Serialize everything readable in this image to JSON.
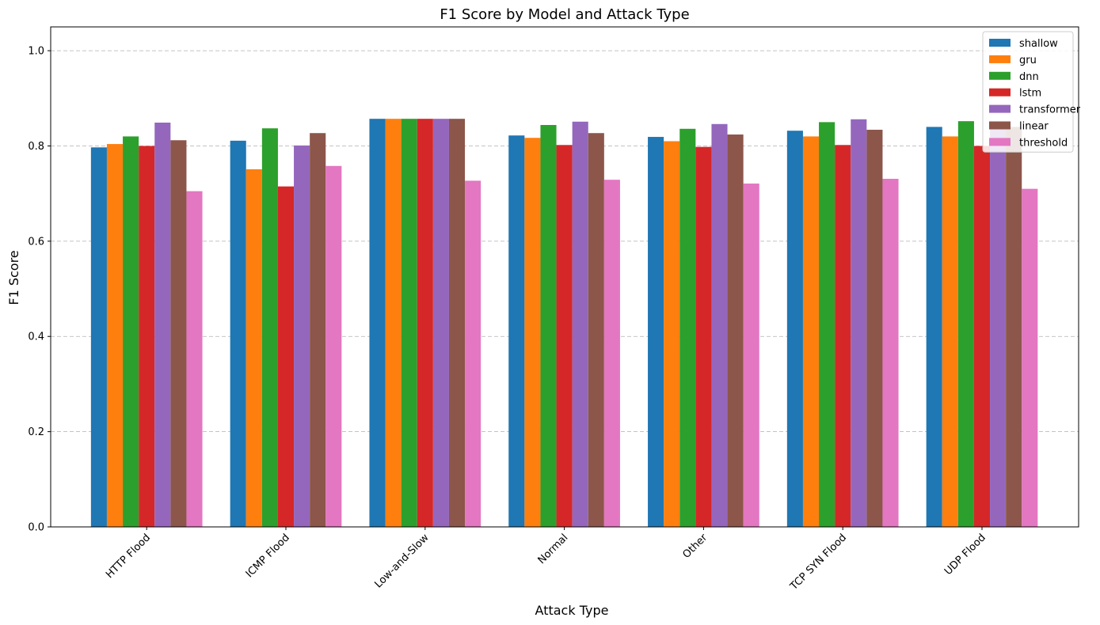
{
  "chart_data": {
    "type": "bar",
    "title": "F1 Score by Model and Attack Type",
    "xlabel": "Attack Type",
    "ylabel": "F1 Score",
    "ylim": [
      0,
      1.05
    ],
    "yticks": [
      "0.0",
      "0.2",
      "0.4",
      "0.6",
      "0.8",
      "1.0"
    ],
    "grid": "y-dashed",
    "legend_position": "top-right",
    "categories": [
      "HTTP Flood",
      "ICMP Flood",
      "Low-and-Slow",
      "Normal",
      "Other",
      "TCP SYN Flood",
      "UDP Flood"
    ],
    "series": [
      {
        "name": "shallow",
        "color": "#1f77b4",
        "values": [
          0.797,
          0.811,
          0.857,
          0.822,
          0.819,
          0.832,
          0.84
        ]
      },
      {
        "name": "gru",
        "color": "#ff7f0e",
        "values": [
          0.804,
          0.751,
          0.857,
          0.817,
          0.81,
          0.82,
          0.82
        ]
      },
      {
        "name": "dnn",
        "color": "#2ca02c",
        "values": [
          0.82,
          0.837,
          0.857,
          0.844,
          0.836,
          0.85,
          0.852
        ]
      },
      {
        "name": "lstm",
        "color": "#d62728",
        "values": [
          0.8,
          0.715,
          0.857,
          0.802,
          0.798,
          0.802,
          0.8
        ]
      },
      {
        "name": "transformer",
        "color": "#9467bd",
        "values": [
          0.849,
          0.801,
          0.857,
          0.851,
          0.846,
          0.856,
          0.845
        ]
      },
      {
        "name": "linear",
        "color": "#8c564b",
        "values": [
          0.812,
          0.827,
          0.857,
          0.827,
          0.824,
          0.834,
          0.84
        ]
      },
      {
        "name": "threshold",
        "color": "#e377c2",
        "values": [
          0.705,
          0.758,
          0.727,
          0.729,
          0.721,
          0.731,
          0.71
        ]
      }
    ]
  }
}
